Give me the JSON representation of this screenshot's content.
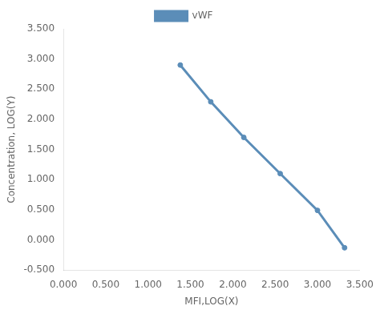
{
  "chart_data": {
    "type": "line",
    "x": [
      1.38,
      1.74,
      2.13,
      2.56,
      3.0,
      3.32
    ],
    "series": [
      {
        "name": "vWF",
        "color": "#5B8DB8",
        "marker": "circle",
        "values": [
          2.9,
          2.29,
          1.7,
          1.1,
          0.49,
          -0.13
        ]
      }
    ],
    "xlabel": "MFI,LOG(X)",
    "ylabel": "Concentration, LOG(Y)",
    "xlim": [
      0.0,
      3.5
    ],
    "ylim": [
      -0.5,
      3.5
    ],
    "xticks": [
      {
        "value": 0.0,
        "label": "0.000"
      },
      {
        "value": 0.5,
        "label": "0.500"
      },
      {
        "value": 1.0,
        "label": "1.000"
      },
      {
        "value": 1.5,
        "label": "1.500"
      },
      {
        "value": 2.0,
        "label": "2.000"
      },
      {
        "value": 2.5,
        "label": "2.500"
      },
      {
        "value": 3.0,
        "label": "3.000"
      },
      {
        "value": 3.5,
        "label": "3.500"
      }
    ],
    "yticks": [
      {
        "value": -0.5,
        "label": "-0.500"
      },
      {
        "value": 0.0,
        "label": "0.000"
      },
      {
        "value": 0.5,
        "label": "0.500"
      },
      {
        "value": 1.0,
        "label": "1.000"
      },
      {
        "value": 1.5,
        "label": "1.500"
      },
      {
        "value": 2.0,
        "label": "2.000"
      },
      {
        "value": 2.5,
        "label": "2.500"
      },
      {
        "value": 3.0,
        "label": "3.000"
      },
      {
        "value": 3.5,
        "label": "3.500"
      }
    ],
    "grid": false,
    "legend": "top"
  }
}
